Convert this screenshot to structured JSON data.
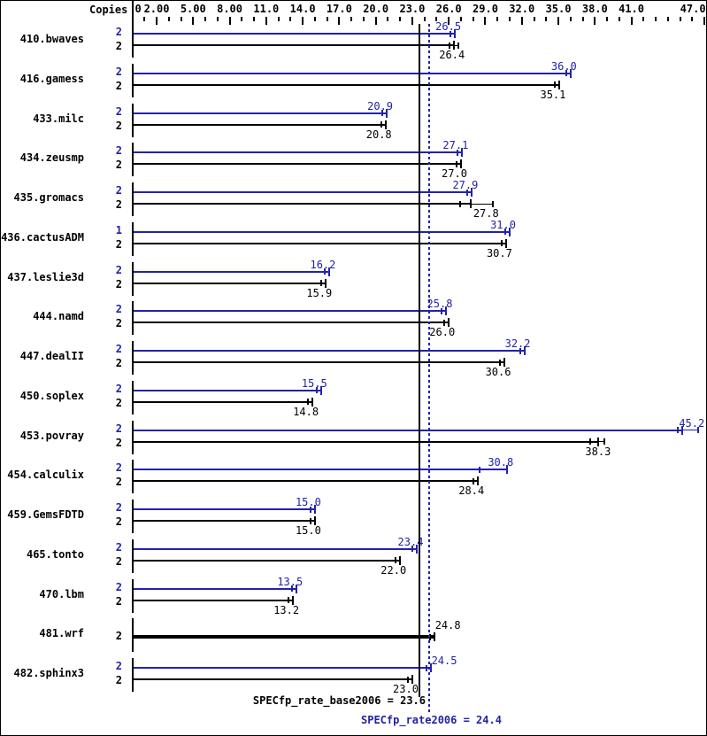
{
  "colors": {
    "peak": "#2222aa",
    "base": "#000000",
    "background": "#ffffff",
    "frame_border": "#000000"
  },
  "chart_data": {
    "type": "bar",
    "orientation": "horizontal",
    "copies_label": "Copies",
    "axis": {
      "position": "top",
      "value_min": 0,
      "value_max": 47.3,
      "minor_tick_step": 1,
      "major_ticks": [
        2,
        5,
        8,
        11,
        14,
        17,
        20,
        23,
        26,
        29,
        32,
        35,
        38,
        41,
        47
      ],
      "labels": [
        {
          "text": "0",
          "value": 0,
          "align": "left"
        },
        {
          "text": "2.00",
          "value": 2
        },
        {
          "text": "5.00",
          "value": 5
        },
        {
          "text": "8.00",
          "value": 8
        },
        {
          "text": "11.0",
          "value": 11
        },
        {
          "text": "14.0",
          "value": 14
        },
        {
          "text": "17.0",
          "value": 17
        },
        {
          "text": "20.0",
          "value": 20
        },
        {
          "text": "23.0",
          "value": 23
        },
        {
          "text": "26.0",
          "value": 26
        },
        {
          "text": "29.0",
          "value": 29
        },
        {
          "text": "32.0",
          "value": 32
        },
        {
          "text": "35.0",
          "value": 35
        },
        {
          "text": "38.0",
          "value": 38
        },
        {
          "text": "41.0",
          "value": 41
        },
        {
          "text": "47.0",
          "value": 47,
          "dx": -13
        }
      ]
    },
    "series_legend": [
      {
        "name": "peak",
        "color_key": "peak"
      },
      {
        "name": "base",
        "color_key": "base"
      }
    ],
    "benchmarks": [
      {
        "name": "410.bwaves",
        "bars": [
          {
            "series": "peak",
            "copies": "2",
            "value": 26.5,
            "label": "26.5"
          },
          {
            "series": "base",
            "copies": "2",
            "value": 26.4,
            "label": "26.4",
            "whisker_max": 26.8
          }
        ]
      },
      {
        "name": "416.gamess",
        "bars": [
          {
            "series": "peak",
            "copies": "2",
            "value": 36.0,
            "label": "36.0"
          },
          {
            "series": "base",
            "copies": "2",
            "value": 35.1,
            "label": "35.1"
          }
        ]
      },
      {
        "name": "433.milc",
        "bars": [
          {
            "series": "peak",
            "copies": "2",
            "value": 20.9,
            "label": "20.9"
          },
          {
            "series": "base",
            "copies": "2",
            "value": 20.8,
            "label": "20.8"
          }
        ]
      },
      {
        "name": "434.zeusmp",
        "bars": [
          {
            "series": "peak",
            "copies": "2",
            "value": 27.1,
            "label": "27.1"
          },
          {
            "series": "base",
            "copies": "2",
            "value": 27.0,
            "label": "27.0"
          }
        ]
      },
      {
        "name": "435.gromacs",
        "bars": [
          {
            "series": "peak",
            "copies": "2",
            "value": 27.9,
            "label": "27.9"
          },
          {
            "series": "base",
            "copies": "2",
            "value": 27.8,
            "label": "27.8",
            "whisker_min": 26.9,
            "whisker_max": 29.6
          }
        ]
      },
      {
        "name": "436.cactusADM",
        "bars": [
          {
            "series": "peak",
            "copies": "1",
            "value": 31.0,
            "label": "31.0"
          },
          {
            "series": "base",
            "copies": "2",
            "value": 30.7,
            "label": "30.7"
          }
        ]
      },
      {
        "name": "437.leslie3d",
        "bars": [
          {
            "series": "peak",
            "copies": "2",
            "value": 16.2,
            "label": "16.2"
          },
          {
            "series": "base",
            "copies": "2",
            "value": 15.9,
            "label": "15.9"
          }
        ]
      },
      {
        "name": "444.namd",
        "bars": [
          {
            "series": "peak",
            "copies": "2",
            "value": 25.8,
            "label": "25.8"
          },
          {
            "series": "base",
            "copies": "2",
            "value": 26.0,
            "label": "26.0"
          }
        ]
      },
      {
        "name": "447.dealII",
        "bars": [
          {
            "series": "peak",
            "copies": "2",
            "value": 32.2,
            "label": "32.2"
          },
          {
            "series": "base",
            "copies": "2",
            "value": 30.6,
            "label": "30.6"
          }
        ]
      },
      {
        "name": "450.soplex",
        "bars": [
          {
            "series": "peak",
            "copies": "2",
            "value": 15.5,
            "label": "15.5"
          },
          {
            "series": "base",
            "copies": "2",
            "value": 14.8,
            "label": "14.8"
          }
        ]
      },
      {
        "name": "453.povray",
        "bars": [
          {
            "series": "peak",
            "copies": "2",
            "value": 45.2,
            "label": "45.2",
            "whisker_max": 46.5
          },
          {
            "series": "base",
            "copies": "2",
            "value": 38.3,
            "label": "38.3",
            "whisker_min": 37.6,
            "whisker_max": 38.8
          }
        ]
      },
      {
        "name": "454.calculix",
        "bars": [
          {
            "series": "peak",
            "copies": "2",
            "value": 30.8,
            "label": "30.8",
            "whisker_min": 28.5
          },
          {
            "series": "base",
            "copies": "2",
            "value": 28.4,
            "label": "28.4"
          }
        ]
      },
      {
        "name": "459.GemsFDTD",
        "bars": [
          {
            "series": "peak",
            "copies": "2",
            "value": 15.0,
            "label": "15.0"
          },
          {
            "series": "base",
            "copies": "2",
            "value": 15.0,
            "label": "15.0"
          }
        ]
      },
      {
        "name": "465.tonto",
        "bars": [
          {
            "series": "peak",
            "copies": "2",
            "value": 23.4,
            "label": "23.4"
          },
          {
            "series": "base",
            "copies": "2",
            "value": 22.0,
            "label": "22.0"
          }
        ]
      },
      {
        "name": "470.lbm",
        "bars": [
          {
            "series": "peak",
            "copies": "2",
            "value": 13.5,
            "label": "13.5"
          },
          {
            "series": "base",
            "copies": "2",
            "value": 13.2,
            "label": "13.2"
          }
        ]
      },
      {
        "name": "481.wrf",
        "bars": [
          {
            "series": "base",
            "copies": "2",
            "value": 24.8,
            "label": "24.8",
            "single": true,
            "bold": true,
            "label_side": "left"
          }
        ]
      },
      {
        "name": "482.sphinx3",
        "bars": [
          {
            "series": "peak",
            "copies": "2",
            "value": 24.5,
            "label": "24.5",
            "label_side": "left"
          },
          {
            "series": "base",
            "copies": "2",
            "value": 23.0,
            "label": "23.0"
          }
        ]
      }
    ],
    "reference_lines": {
      "base": {
        "value": 23.6,
        "style": "solid"
      },
      "peak": {
        "value": 24.4,
        "style": "dotted"
      }
    },
    "summary": {
      "base_label": "SPECfp_rate_base2006 = 23.6",
      "peak_label": "SPECfp_rate2006 = 24.4"
    }
  }
}
